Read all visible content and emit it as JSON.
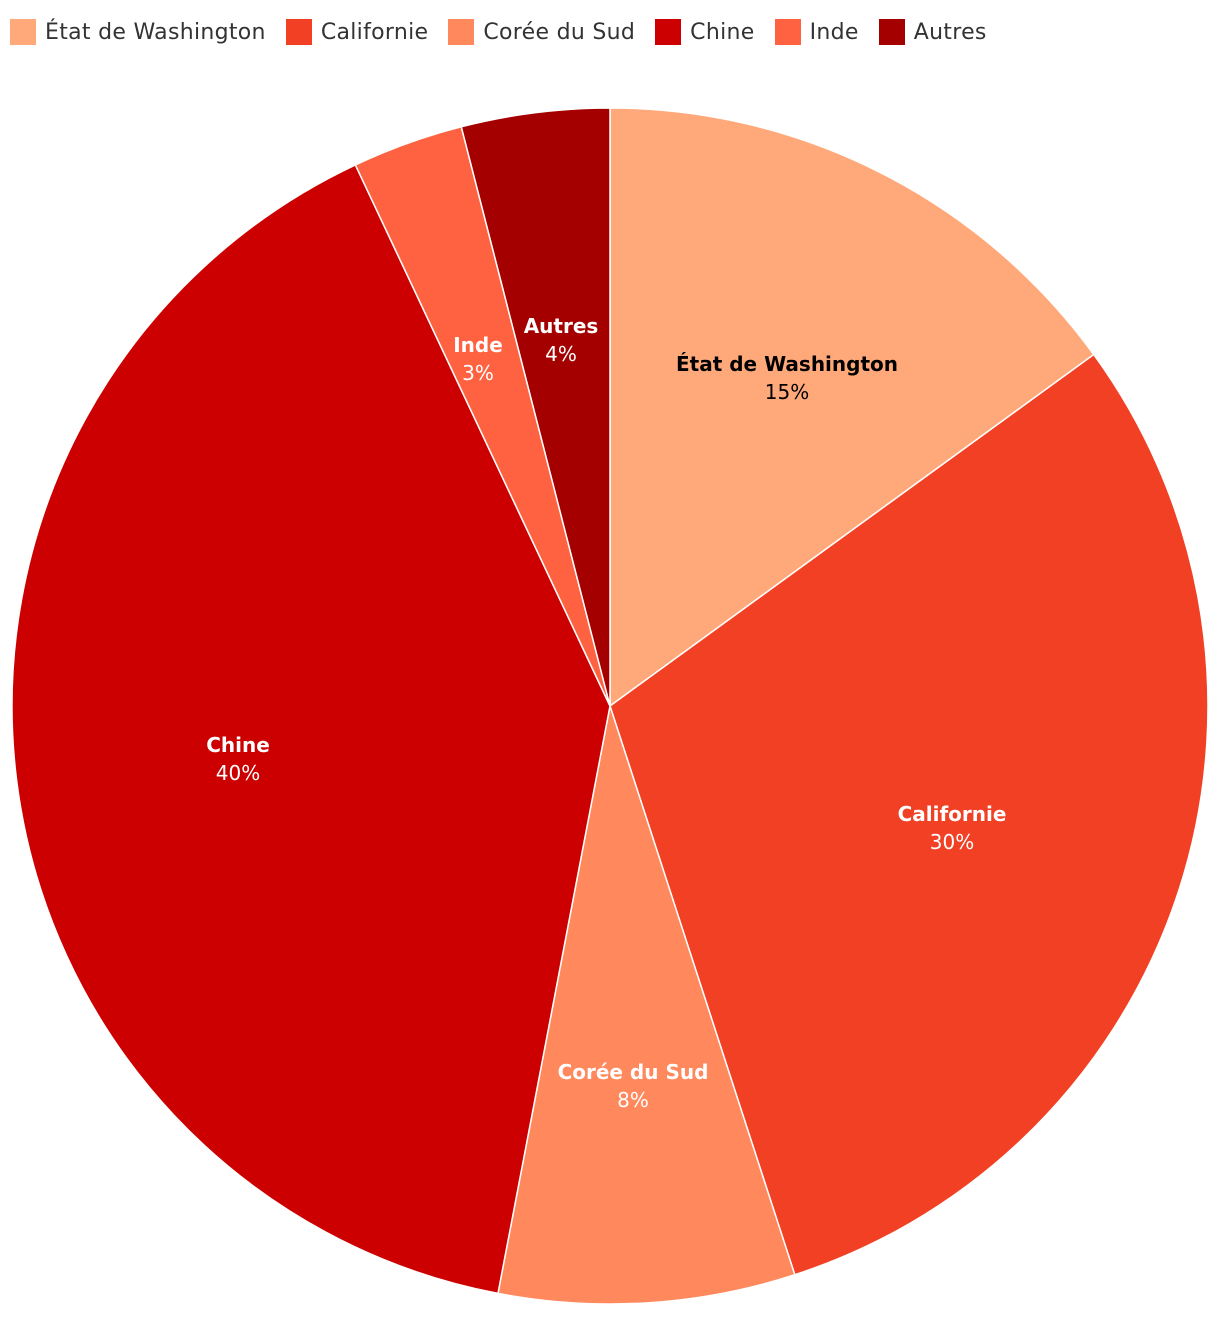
{
  "chart_data": {
    "type": "pie",
    "title": "",
    "legend_position": "top-left",
    "start_angle_deg": 0,
    "direction": "clockwise",
    "slices": [
      {
        "name": "État de Washington",
        "value": 15,
        "label": "15%",
        "color": "#FFA97A",
        "label_color": "#000000"
      },
      {
        "name": "Californie",
        "value": 30,
        "label": "30%",
        "color": "#F14024",
        "label_color": "#ffffff"
      },
      {
        "name": "Corée du Sud",
        "value": 8,
        "label": "8%",
        "color": "#FF885C",
        "label_color": "#ffffff"
      },
      {
        "name": "Chine",
        "value": 40,
        "label": "40%",
        "color": "#CC0000",
        "label_color": "#ffffff"
      },
      {
        "name": "Inde",
        "value": 3,
        "label": "3%",
        "color": "#FF6240",
        "label_color": "#ffffff"
      },
      {
        "name": "Autres",
        "value": 4,
        "label": "4%",
        "color": "#A50000",
        "label_color": "#ffffff"
      }
    ]
  }
}
